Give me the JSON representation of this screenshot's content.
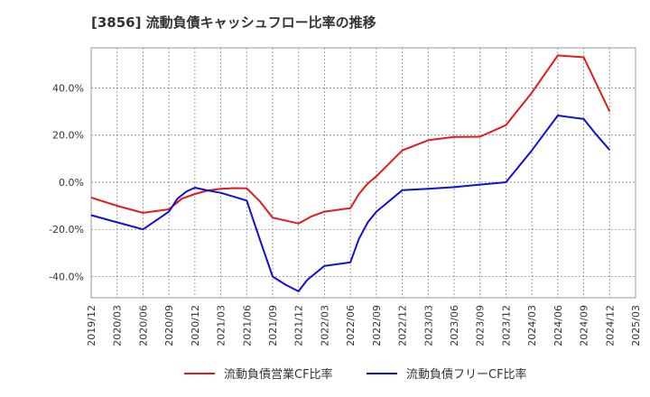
{
  "chart_data": {
    "type": "line",
    "title": "[3856]  流動負債キャッシュフロー比率の推移",
    "y_ticks": [
      "40.0%",
      "20.0%",
      "0.0%",
      "-20.0%",
      "-40.0%"
    ],
    "y_tick_values": [
      40,
      20,
      0,
      -20,
      -40
    ],
    "ylim": [
      -49,
      57
    ],
    "x_ticks": [
      "2019/12",
      "2020/03",
      "2020/06",
      "2020/09",
      "2020/12",
      "2021/03",
      "2021/06",
      "2021/09",
      "2021/12",
      "2022/03",
      "2022/06",
      "2022/09",
      "2022/12",
      "2023/03",
      "2023/06",
      "2023/09",
      "2023/12",
      "2024/03",
      "2024/06",
      "2024/09",
      "2024/12",
      "2025/03"
    ],
    "grid": true,
    "legend_position": "bottom",
    "series": [
      {
        "name": "流動負債営業CF比率",
        "color": "#e31a1c",
        "points": [
          [
            0,
            -6.5
          ],
          [
            1,
            -10
          ],
          [
            2,
            -13
          ],
          [
            3,
            -11.5
          ],
          [
            3.5,
            -7
          ],
          [
            4,
            -5
          ],
          [
            4.5,
            -3.5
          ],
          [
            5,
            -2.8
          ],
          [
            5.5,
            -2.5
          ],
          [
            6,
            -2.6
          ],
          [
            6.5,
            -8
          ],
          [
            7,
            -15
          ],
          [
            8,
            -17.5
          ],
          [
            8.5,
            -14.5
          ],
          [
            9,
            -12.5
          ],
          [
            10,
            -11
          ],
          [
            10.33,
            -5
          ],
          [
            10.67,
            -0.5
          ],
          [
            11,
            2.5
          ],
          [
            12,
            13.5
          ],
          [
            13,
            17.8
          ],
          [
            14,
            19.2
          ],
          [
            15,
            19.3
          ],
          [
            16,
            24.2
          ],
          [
            17,
            38
          ],
          [
            18,
            53.8
          ],
          [
            19,
            53
          ],
          [
            19.5,
            41.5
          ],
          [
            20,
            30
          ]
        ]
      },
      {
        "name": "流動負債フリーCF比率",
        "color": "#1010d6",
        "points": [
          [
            0,
            -14
          ],
          [
            1,
            -17
          ],
          [
            2,
            -20
          ],
          [
            3,
            -12.5
          ],
          [
            3.33,
            -7
          ],
          [
            3.67,
            -4
          ],
          [
            4,
            -2.3
          ],
          [
            4.5,
            -3.5
          ],
          [
            5,
            -4.5
          ],
          [
            6,
            -7.8
          ],
          [
            6.5,
            -24
          ],
          [
            7,
            -40
          ],
          [
            7.5,
            -43.5
          ],
          [
            8,
            -46.3
          ],
          [
            8.33,
            -41.5
          ],
          [
            9,
            -35.5
          ],
          [
            10,
            -34
          ],
          [
            10.33,
            -24
          ],
          [
            10.67,
            -17
          ],
          [
            11,
            -12.5
          ],
          [
            12,
            -3.4
          ],
          [
            13,
            -2.8
          ],
          [
            14,
            -2.1
          ],
          [
            15,
            -1
          ],
          [
            16,
            0
          ],
          [
            17,
            13.5
          ],
          [
            18,
            28.3
          ],
          [
            19,
            26.8
          ],
          [
            19.5,
            20
          ],
          [
            20,
            13.7
          ]
        ]
      }
    ]
  }
}
